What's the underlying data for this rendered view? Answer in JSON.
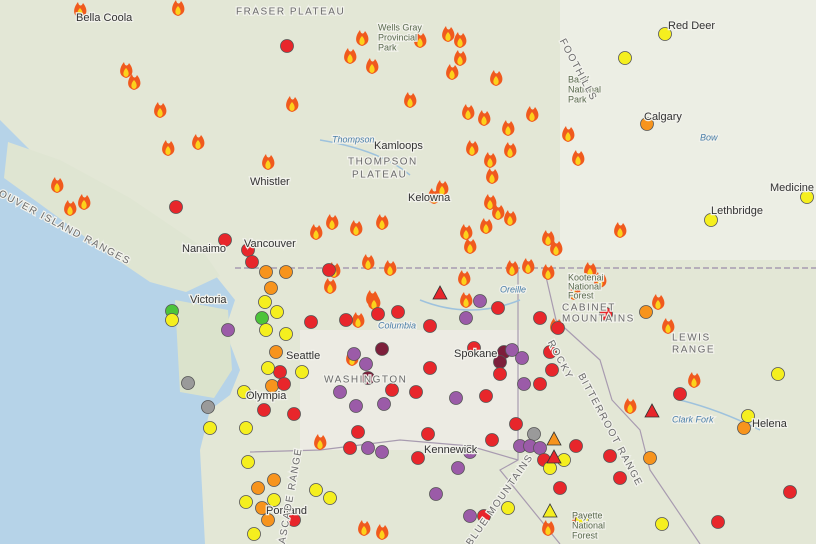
{
  "map": {
    "labels": [
      "Bella Coola",
      "FRASER PLATEAU",
      "Wells Gray",
      "Provincial",
      "Park",
      "Banff",
      "National",
      "Park",
      "Red Deer",
      "Calgary",
      "Bow",
      "Thompson",
      "Kamloops",
      "THOMPSON",
      "PLATEAU",
      "Whistler",
      "Kelowna",
      "Medicine",
      "Lethbridge",
      "VANCOUVER ISLAND RANGES",
      "Nanaimo",
      "Vancouver",
      "Victoria",
      "Kootenai",
      "National",
      "Forest",
      "CABINET",
      "MOUNTAINS",
      "Columbia",
      "Spokane",
      "WASHINGTON",
      "Seattle",
      "Olympia",
      "LEWIS",
      "RANGE",
      "Helena",
      "Clark Fork",
      "Kennewick",
      "Portland",
      "Payette",
      "National",
      "Forest",
      "BITTERROOT RANGE",
      "CASCADE RANGE",
      "ROCKY",
      "FOOTHILLS",
      "Oreille",
      "BLUE MOUNTAINS"
    ]
  }
}
